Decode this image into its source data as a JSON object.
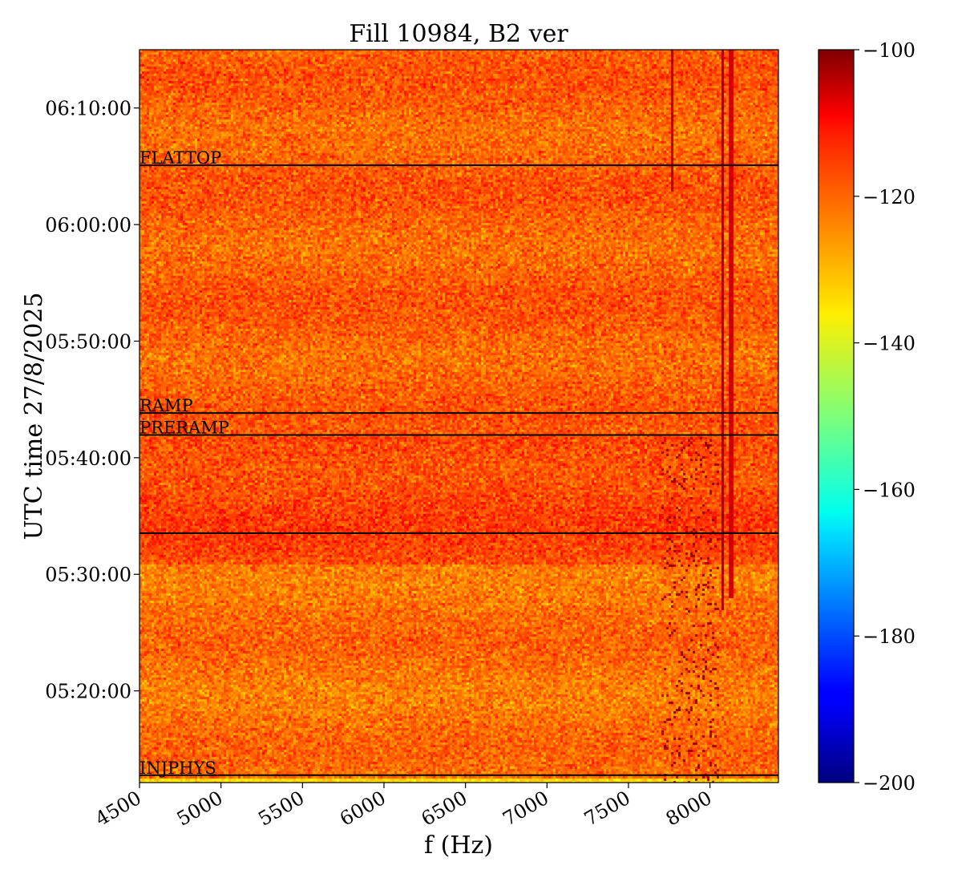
{
  "chart_data": {
    "type": "heatmap",
    "title": "Fill 10984, B2 ver",
    "xlabel": "f (Hz)",
    "ylabel": "UTC time 27/8/2025",
    "xlim": [
      4500,
      8420
    ],
    "x_ticks": [
      4500,
      5000,
      5500,
      6000,
      6500,
      7000,
      7500,
      8000
    ],
    "x_tick_labels": [
      "4500",
      "5000",
      "5500",
      "6000",
      "6500",
      "7000",
      "7500",
      "8000"
    ],
    "ylim": [
      "05:12:08",
      "06:15:00"
    ],
    "y_ticks": [
      "05:20:00",
      "05:30:00",
      "05:40:00",
      "05:50:00",
      "06:00:00",
      "06:10:00"
    ],
    "colorbar": {
      "colormap": "jet",
      "range": [
        -200,
        -100
      ],
      "ticks": [
        -100,
        -120,
        -140,
        -160,
        -180,
        -200
      ],
      "tick_labels": [
        "−100",
        "−120",
        "−140",
        "−160",
        "−180",
        "−200"
      ]
    },
    "background_level": -122,
    "phase_lines": [
      {
        "label": "FLATTOP",
        "time": "06:05:05"
      },
      {
        "label": "RAMP",
        "time": "05:43:50"
      },
      {
        "label": "PRERAMP",
        "time": "05:41:57"
      },
      {
        "label": "",
        "time": "05:33:32"
      },
      {
        "label": "INJPHYS",
        "time": "05:12:46"
      }
    ],
    "spectral_lines": [
      {
        "f": 8070,
        "t_start": "05:27:00",
        "t_end": "06:15:00",
        "level": -104
      },
      {
        "f": 7765,
        "t_start": "06:03:00",
        "t_end": "06:15:00",
        "level": -106
      },
      {
        "f": 8120,
        "t_start": "05:28:00",
        "t_end": "06:15:00",
        "level": -108
      }
    ]
  }
}
